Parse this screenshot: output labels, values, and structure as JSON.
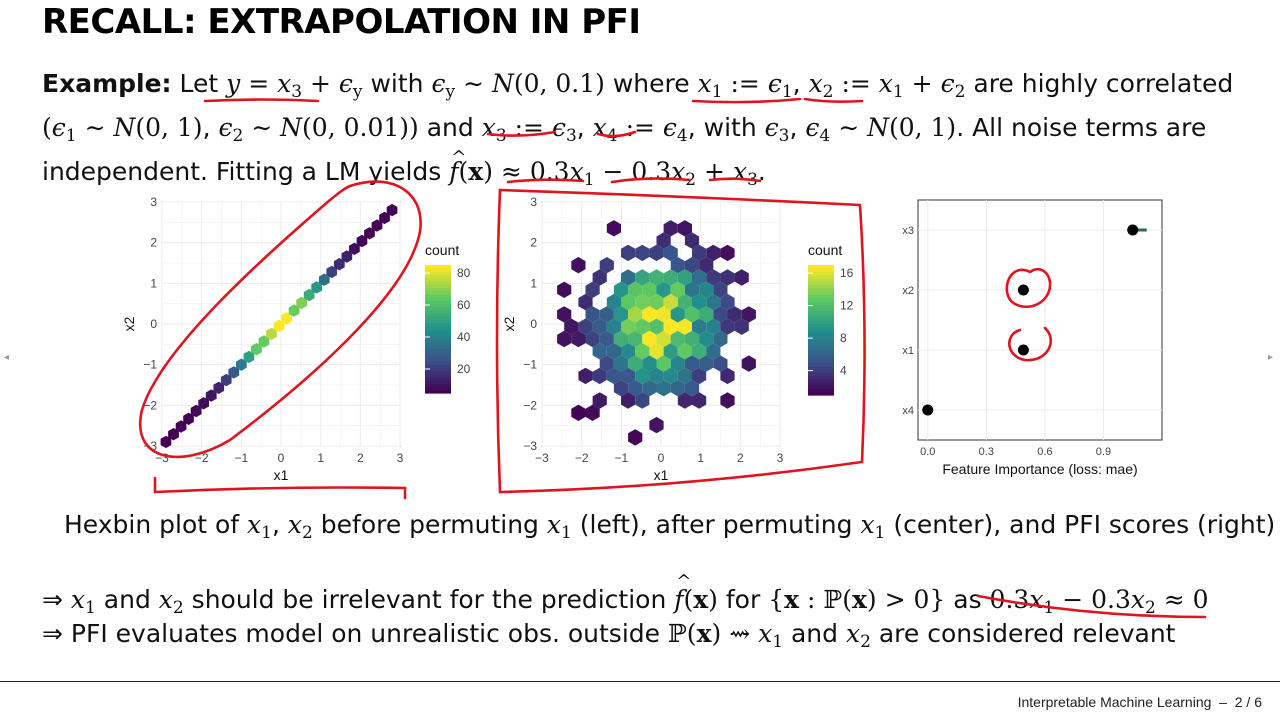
{
  "title": "RECALL: EXTRAPOLATION IN PFI",
  "example_label": "Example:",
  "caption": "Hexbin plot of x1, x2 before permuting x1 (left), after permuting x1 (center), and PFI scores (right)",
  "implication1": "⇒ x1 and x2 should be irrelevant for the prediction f̂(x) for {x : P(x) > 0} as 0.3x1 − 0.3x2 ≈ 0",
  "implication2": "⇒ PFI evaluates model on unrealistic obs. outside P(x) ⇝ x1 and x2 are considered relevant",
  "footer": {
    "course": "Interpretable Machine Learning",
    "page": "2 / 6"
  },
  "colors": {
    "annotation": "#e0141e",
    "viridis": [
      "#440154",
      "#3b528b",
      "#21918c",
      "#5ec962",
      "#fde725"
    ]
  },
  "chart_data": [
    {
      "type": "heatmap",
      "title": "",
      "xlabel": "x1",
      "ylabel": "x2",
      "xlim": [
        -3,
        3
      ],
      "ylim": [
        -3,
        3
      ],
      "xticks": [
        "−3",
        "−2",
        "−1",
        "0",
        "1",
        "2",
        "3"
      ],
      "yticks": [
        "−3",
        "−2",
        "−1",
        "0",
        "1",
        "2",
        "3"
      ],
      "legend_title": "count",
      "legend_ticks": [
        "20",
        "40",
        "60",
        "80"
      ],
      "legend_range": [
        5,
        85
      ],
      "grid": true,
      "legend_position": "right"
    },
    {
      "type": "heatmap",
      "title": "",
      "xlabel": "x1",
      "ylabel": "x2",
      "xlim": [
        -3,
        3
      ],
      "ylim": [
        -3,
        3
      ],
      "xticks": [
        "−3",
        "−2",
        "−1",
        "0",
        "1",
        "2",
        "3"
      ],
      "yticks": [
        "−3",
        "−2",
        "−1",
        "0",
        "1",
        "2",
        "3"
      ],
      "legend_title": "count",
      "legend_ticks": [
        "4",
        "8",
        "12",
        "16"
      ],
      "legend_range": [
        1,
        17
      ],
      "grid": true,
      "legend_position": "right"
    },
    {
      "type": "scatter",
      "title": "",
      "xlabel": "Feature Importance (loss: mae)",
      "ylabel": "",
      "categories": [
        "x4",
        "x1",
        "x2",
        "x3"
      ],
      "values": [
        0.0,
        0.49,
        0.49,
        1.05
      ],
      "xlim": [
        -0.05,
        1.2
      ],
      "xticks": [
        "0.0",
        "0.3",
        "0.6",
        "0.9"
      ],
      "grid": true
    }
  ]
}
